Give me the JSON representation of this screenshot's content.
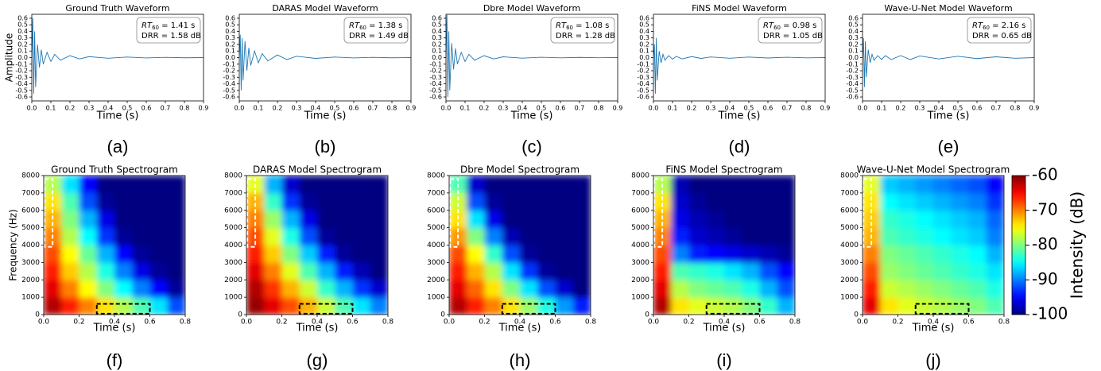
{
  "chart_data": [
    {
      "type": "line",
      "title": "Ground Truth Waveform",
      "ylabel": "Amplitude",
      "xlabel": "Time (s)",
      "panel_label": "(a)",
      "color": "#1f77b4",
      "annotation": {
        "rt_symbol": "RT",
        "rt_subscript": "60",
        "rt_value": " = 1.41 s",
        "drr": "DRR = 1.58 dB"
      },
      "x": [
        0,
        0.005,
        0.01,
        0.015,
        0.02,
        0.03,
        0.04,
        0.05,
        0.06,
        0.08,
        0.1,
        0.12,
        0.15,
        0.2,
        0.25,
        0.3,
        0.4,
        0.5,
        0.6,
        0.7,
        0.8,
        0.9
      ],
      "values": [
        0,
        0.6,
        -0.55,
        0.4,
        -0.45,
        0.2,
        -0.15,
        0.12,
        -0.1,
        0.08,
        -0.06,
        0.05,
        -0.04,
        0.03,
        -0.02,
        0.015,
        -0.01,
        0.008,
        -0.005,
        0.004,
        -0.003,
        0
      ],
      "xlim": [
        0,
        0.9
      ],
      "xticks": [
        {
          "value": 0,
          "label": "0.0"
        },
        0.1,
        0.2,
        0.3,
        0.4,
        0.5,
        0.6,
        0.7,
        0.8,
        0.9
      ],
      "ylim": [
        -0.66,
        0.66
      ],
      "yticks": [
        -0.6,
        -0.5,
        -0.4,
        -0.3,
        -0.2,
        -0.1,
        {
          "value": 0,
          "label": "0.0"
        },
        0.1,
        0.2,
        0.3,
        0.4,
        0.5,
        0.6
      ]
    },
    {
      "type": "line",
      "title": "DARAS Model Waveform",
      "xlabel": "Time (s)",
      "panel_label": "(b)",
      "color": "#1f77b4",
      "annotation": {
        "rt_symbol": "RT",
        "rt_subscript": "60",
        "rt_value": " = 1.38 s",
        "drr": "DRR = 1.49 dB"
      },
      "x": [
        0,
        0.005,
        0.01,
        0.015,
        0.02,
        0.03,
        0.04,
        0.05,
        0.06,
        0.08,
        0.1,
        0.12,
        0.15,
        0.2,
        0.25,
        0.3,
        0.4,
        0.5,
        0.6,
        0.7,
        0.8,
        0.9
      ],
      "values": [
        0,
        0.35,
        -0.5,
        0.3,
        -0.35,
        0.25,
        -0.2,
        0.15,
        -0.12,
        0.1,
        -0.08,
        0.06,
        -0.05,
        0.04,
        -0.03,
        0.02,
        -0.012,
        0.008,
        -0.005,
        0.004,
        -0.003,
        0
      ],
      "xlim": [
        0,
        0.9
      ],
      "xticks": [
        {
          "value": 0,
          "label": "0.0"
        },
        0.1,
        0.2,
        0.3,
        0.4,
        0.5,
        0.6,
        0.7,
        0.8,
        0.9
      ],
      "ylim": [
        -0.66,
        0.66
      ],
      "yticks": [
        -0.6,
        -0.5,
        -0.4,
        -0.3,
        -0.2,
        -0.1,
        {
          "value": 0,
          "label": "0.0"
        },
        0.1,
        0.2,
        0.3,
        0.4,
        0.5,
        0.6
      ]
    },
    {
      "type": "line",
      "title": "Dbre Model Waveform",
      "xlabel": "Time (s)",
      "panel_label": "(c)",
      "color": "#1f77b4",
      "annotation": {
        "rt_symbol": "RT",
        "rt_subscript": "60",
        "rt_value": " = 1.08 s",
        "drr": "DRR = 1.28 dB"
      },
      "x": [
        0,
        0.005,
        0.01,
        0.015,
        0.02,
        0.03,
        0.04,
        0.05,
        0.06,
        0.08,
        0.1,
        0.12,
        0.15,
        0.2,
        0.25,
        0.3,
        0.4,
        0.5,
        0.6,
        0.7,
        0.8,
        0.9
      ],
      "values": [
        0,
        0.65,
        -0.6,
        0.4,
        -0.5,
        0.22,
        -0.18,
        0.14,
        -0.1,
        0.08,
        -0.06,
        0.05,
        -0.04,
        0.03,
        -0.02,
        0.012,
        -0.008,
        0.005,
        -0.004,
        0.003,
        -0.002,
        0
      ],
      "xlim": [
        0,
        0.9
      ],
      "xticks": [
        {
          "value": 0,
          "label": "0.0"
        },
        0.1,
        0.2,
        0.3,
        0.4,
        0.5,
        0.6,
        0.7,
        0.8,
        0.9
      ],
      "ylim": [
        -0.66,
        0.66
      ],
      "yticks": [
        -0.6,
        -0.5,
        -0.4,
        -0.3,
        -0.2,
        -0.1,
        {
          "value": 0,
          "label": "0.0"
        },
        0.1,
        0.2,
        0.3,
        0.4,
        0.5,
        0.6
      ]
    },
    {
      "type": "line",
      "title": "FiNS Model Waveform",
      "xlabel": "Time (s)",
      "panel_label": "(d)",
      "color": "#1f77b4",
      "annotation": {
        "rt_symbol": "RT",
        "rt_subscript": "60",
        "rt_value": " = 0.98 s",
        "drr": "DRR = 1.05 dB"
      },
      "x": [
        0,
        0.005,
        0.01,
        0.015,
        0.02,
        0.03,
        0.04,
        0.05,
        0.06,
        0.08,
        0.1,
        0.12,
        0.15,
        0.2,
        0.25,
        0.3,
        0.4,
        0.5,
        0.6,
        0.7,
        0.8,
        0.9
      ],
      "values": [
        0,
        0.2,
        -0.55,
        0.3,
        -0.35,
        0.1,
        -0.08,
        0.05,
        -0.04,
        0.03,
        -0.025,
        0.02,
        -0.02,
        0.015,
        -0.012,
        0.01,
        -0.01,
        0.008,
        -0.006,
        0.005,
        -0.004,
        0
      ],
      "xlim": [
        0,
        0.9
      ],
      "xticks": [
        {
          "value": 0,
          "label": "0.0"
        },
        0.1,
        0.2,
        0.3,
        0.4,
        0.5,
        0.6,
        0.7,
        0.8,
        0.9
      ],
      "ylim": [
        -0.66,
        0.66
      ],
      "yticks": [
        -0.6,
        -0.5,
        -0.4,
        -0.3,
        -0.2,
        -0.1,
        {
          "value": 0,
          "label": "0.0"
        },
        0.1,
        0.2,
        0.3,
        0.4,
        0.5,
        0.6
      ]
    },
    {
      "type": "line",
      "title": "Wave-U-Net Model Waveform",
      "xlabel": "Time (s)",
      "panel_label": "(e)",
      "color": "#1f77b4",
      "annotation": {
        "rt_symbol": "RT",
        "rt_subscript": "60",
        "rt_value": " = 2.16 s",
        "drr": "DRR = 0.65 dB"
      },
      "x": [
        0,
        0.005,
        0.01,
        0.015,
        0.02,
        0.03,
        0.04,
        0.05,
        0.06,
        0.08,
        0.1,
        0.12,
        0.15,
        0.2,
        0.25,
        0.3,
        0.4,
        0.5,
        0.6,
        0.7,
        0.8,
        0.9
      ],
      "values": [
        0,
        0.3,
        -0.45,
        0.25,
        -0.3,
        0.12,
        -0.08,
        0.05,
        -0.04,
        0.03,
        -0.03,
        0.03,
        -0.03,
        0.03,
        -0.03,
        0.025,
        -0.02,
        0.02,
        -0.015,
        0.012,
        -0.01,
        0
      ],
      "xlim": [
        0,
        0.9
      ],
      "xticks": [
        {
          "value": 0,
          "label": "0.0"
        },
        0.1,
        0.2,
        0.3,
        0.4,
        0.5,
        0.6,
        0.7,
        0.8,
        0.9
      ],
      "ylim": [
        -0.66,
        0.66
      ],
      "yticks": [
        -0.6,
        -0.5,
        -0.4,
        -0.3,
        -0.2,
        -0.1,
        {
          "value": 0,
          "label": "0.0"
        },
        0.1,
        0.2,
        0.3,
        0.4,
        0.5,
        0.6
      ]
    },
    {
      "type": "heatmap",
      "title": "Ground Truth Spectrogram",
      "ylabel": "Frequency (Hz)",
      "xlabel": "Time (s)",
      "panel_label": "(f)",
      "xlim": [
        0,
        0.8
      ],
      "xticks": [
        {
          "value": 0,
          "label": "0.0"
        },
        0.2,
        0.4,
        0.6,
        0.8
      ],
      "ylim": [
        0,
        8000
      ],
      "yticks": [
        0,
        1000,
        2000,
        3000,
        4000,
        5000,
        6000,
        7000,
        8000
      ],
      "z": [
        [
          -62,
          -66,
          -70,
          -74,
          -78,
          -82,
          -86,
          -92
        ],
        [
          -64,
          -70,
          -75,
          -80,
          -85,
          -90,
          -95,
          -99
        ],
        [
          -66,
          -73,
          -78,
          -84,
          -90,
          -96,
          -99,
          -100
        ],
        [
          -68,
          -75,
          -81,
          -88,
          -95,
          -99,
          -100,
          -100
        ],
        [
          -70,
          -78,
          -85,
          -93,
          -99,
          -100,
          -100,
          -100
        ],
        [
          -72,
          -80,
          -88,
          -96,
          -100,
          -100,
          -100,
          -100
        ],
        [
          -74,
          -82,
          -92,
          -99,
          -100,
          -100,
          -100,
          -100
        ],
        [
          -78,
          -86,
          -95,
          -100,
          -100,
          -100,
          -100,
          -100
        ]
      ],
      "boxes": [
        {
          "x": [
            0.005,
            0.05
          ],
          "y": [
            3900,
            7800
          ],
          "color": "#ffffff"
        },
        {
          "x": [
            0.3,
            0.6
          ],
          "y": [
            50,
            620
          ],
          "color": "#000000"
        }
      ]
    },
    {
      "type": "heatmap",
      "title": "DARAS Model Spectrogram",
      "xlabel": "Time (s)",
      "panel_label": "(g)",
      "xlim": [
        0,
        0.8
      ],
      "xticks": [
        {
          "value": 0,
          "label": "0.0"
        },
        0.2,
        0.4,
        0.6,
        0.8
      ],
      "ylim": [
        0,
        8000
      ],
      "yticks": [
        0,
        1000,
        2000,
        3000,
        4000,
        5000,
        6000,
        7000,
        8000
      ],
      "z": [
        [
          -61,
          -64,
          -68,
          -72,
          -77,
          -82,
          -86,
          -90
        ],
        [
          -62,
          -67,
          -72,
          -77,
          -83,
          -88,
          -93,
          -97
        ],
        [
          -64,
          -70,
          -76,
          -82,
          -88,
          -94,
          -98,
          -100
        ],
        [
          -66,
          -73,
          -80,
          -87,
          -94,
          -99,
          -100,
          -100
        ],
        [
          -68,
          -76,
          -84,
          -92,
          -99,
          -100,
          -100,
          -100
        ],
        [
          -70,
          -79,
          -88,
          -96,
          -100,
          -100,
          -100,
          -100
        ],
        [
          -72,
          -83,
          -93,
          -99,
          -100,
          -100,
          -100,
          -100
        ],
        [
          -76,
          -88,
          -97,
          -100,
          -100,
          -100,
          -100,
          -100
        ]
      ],
      "boxes": [
        {
          "x": [
            0.005,
            0.05
          ],
          "y": [
            3900,
            7800
          ],
          "color": "#ffffff"
        },
        {
          "x": [
            0.3,
            0.6
          ],
          "y": [
            50,
            620
          ],
          "color": "#000000"
        }
      ]
    },
    {
      "type": "heatmap",
      "title": "Dbre Model Spectrogram",
      "xlabel": "Time (s)",
      "panel_label": "(h)",
      "xlim": [
        0,
        0.8
      ],
      "xticks": [
        {
          "value": 0,
          "label": "0.0"
        },
        0.2,
        0.4,
        0.6,
        0.8
      ],
      "ylim": [
        0,
        8000
      ],
      "yticks": [
        0,
        1000,
        2000,
        3000,
        4000,
        5000,
        6000,
        7000,
        8000
      ],
      "z": [
        [
          -62,
          -66,
          -70,
          -74,
          -79,
          -84,
          -89,
          -94
        ],
        [
          -64,
          -69,
          -74,
          -80,
          -86,
          -92,
          -97,
          -100
        ],
        [
          -66,
          -72,
          -78,
          -86,
          -93,
          -99,
          -100,
          -100
        ],
        [
          -68,
          -75,
          -83,
          -92,
          -99,
          -100,
          -100,
          -100
        ],
        [
          -71,
          -80,
          -90,
          -98,
          -100,
          -100,
          -100,
          -100
        ],
        [
          -74,
          -86,
          -96,
          -100,
          -100,
          -100,
          -100,
          -100
        ],
        [
          -77,
          -92,
          -99,
          -100,
          -100,
          -100,
          -100,
          -100
        ],
        [
          -82,
          -97,
          -100,
          -100,
          -100,
          -100,
          -100,
          -100
        ]
      ],
      "boxes": [
        {
          "x": [
            0.005,
            0.05
          ],
          "y": [
            3900,
            7800
          ],
          "color": "#ffffff"
        },
        {
          "x": [
            0.3,
            0.6
          ],
          "y": [
            50,
            620
          ],
          "color": "#000000"
        }
      ]
    },
    {
      "type": "heatmap",
      "title": "FiNS Model Spectrogram",
      "xlabel": "Time (s)",
      "panel_label": "(i)",
      "xlim": [
        0,
        0.8
      ],
      "xticks": [
        {
          "value": 0,
          "label": "0.0"
        },
        0.2,
        0.4,
        0.6,
        0.8
      ],
      "ylim": [
        0,
        8000
      ],
      "yticks": [
        0,
        1000,
        2000,
        3000,
        4000,
        5000,
        6000,
        7000,
        8000
      ],
      "z": [
        [
          -62,
          -74,
          -76,
          -77,
          -78,
          -80,
          -83,
          -88
        ],
        [
          -64,
          -78,
          -80,
          -81,
          -82,
          -84,
          -88,
          -92
        ],
        [
          -66,
          -82,
          -83,
          -84,
          -86,
          -88,
          -92,
          -95
        ],
        [
          -68,
          -90,
          -94,
          -95,
          -96,
          -97,
          -98,
          -99
        ],
        [
          -70,
          -94,
          -97,
          -98,
          -99,
          -100,
          -100,
          -100
        ],
        [
          -72,
          -96,
          -98,
          -99,
          -100,
          -100,
          -100,
          -100
        ],
        [
          -74,
          -97,
          -99,
          -100,
          -100,
          -100,
          -100,
          -100
        ],
        [
          -78,
          -98,
          -100,
          -100,
          -100,
          -100,
          -100,
          -100
        ]
      ],
      "boxes": [
        {
          "x": [
            0.005,
            0.05
          ],
          "y": [
            3900,
            7800
          ],
          "color": "#ffffff"
        },
        {
          "x": [
            0.3,
            0.6
          ],
          "y": [
            50,
            620
          ],
          "color": "#000000"
        }
      ]
    },
    {
      "type": "heatmap",
      "title": "Wave-U-Net Model Spectrogram",
      "xlabel": "Time (s)",
      "panel_label": "(j)",
      "xlim": [
        0,
        0.8
      ],
      "xticks": [
        {
          "value": 0,
          "label": "0.0"
        },
        0.2,
        0.4,
        0.6,
        0.8
      ],
      "ylim": [
        0,
        8000
      ],
      "yticks": [
        0,
        1000,
        2000,
        3000,
        4000,
        5000,
        6000,
        7000,
        8000
      ],
      "z": [
        [
          -64,
          -74,
          -76,
          -77,
          -78,
          -79,
          -80,
          -82
        ],
        [
          -66,
          -77,
          -78,
          -79,
          -80,
          -81,
          -82,
          -84
        ],
        [
          -68,
          -79,
          -80,
          -81,
          -82,
          -83,
          -84,
          -86
        ],
        [
          -70,
          -80,
          -81,
          -82,
          -83,
          -84,
          -85,
          -88
        ],
        [
          -72,
          -82,
          -83,
          -84,
          -85,
          -86,
          -87,
          -90
        ],
        [
          -73,
          -83,
          -84,
          -85,
          -86,
          -87,
          -88,
          -91
        ],
        [
          -74,
          -85,
          -86,
          -87,
          -88,
          -89,
          -90,
          -93
        ],
        [
          -76,
          -87,
          -88,
          -89,
          -90,
          -91,
          -92,
          -95
        ]
      ],
      "boxes": [
        {
          "x": [
            0.005,
            0.05
          ],
          "y": [
            3900,
            7800
          ],
          "color": "#ffffff"
        },
        {
          "x": [
            0.3,
            0.6
          ],
          "y": [
            50,
            620
          ],
          "color": "#000000"
        }
      ]
    },
    {
      "type": "colorbar",
      "label": "Intensity (dB)",
      "ylim": [
        -100,
        -60
      ],
      "yticks": [
        -60,
        -70,
        -80,
        -90,
        -100
      ]
    }
  ]
}
